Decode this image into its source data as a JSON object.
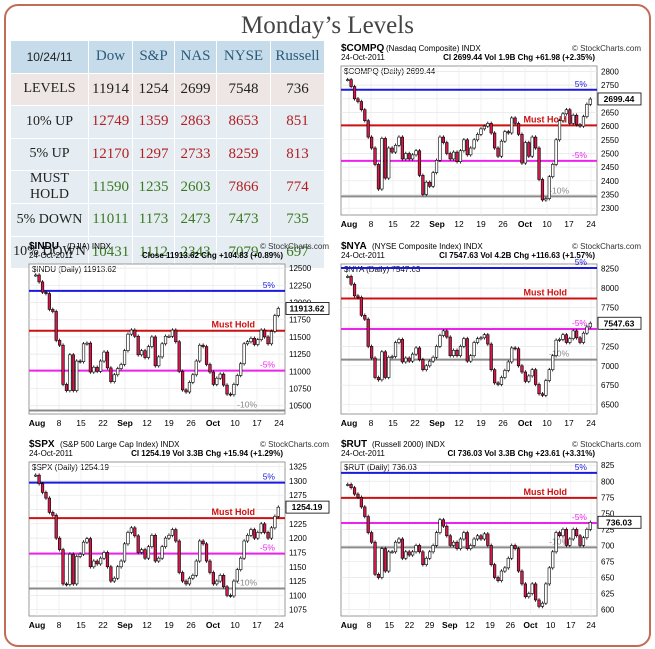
{
  "title": "Monday’s Levels",
  "table": {
    "date": "10/24/11",
    "columns": [
      "Dow",
      "S&P",
      "NAS",
      "NYSE",
      "Russell"
    ],
    "rows": [
      {
        "label": "LEVELS",
        "values": [
          "11914",
          "1254",
          "2699",
          "7548",
          "736"
        ],
        "kind": "lvl"
      },
      {
        "label": "10% UP",
        "values": [
          "12749",
          "1359",
          "2863",
          "8653",
          "851"
        ],
        "kind": "up"
      },
      {
        "label": "5% UP",
        "values": [
          "12170",
          "1297",
          "2733",
          "8259",
          "813"
        ],
        "kind": "up"
      },
      {
        "label": "MUST HOLD",
        "values": [
          "11590",
          "1235",
          "2603",
          "7866",
          "774"
        ],
        "kind": "hold"
      },
      {
        "label": "5% DOWN",
        "values": [
          "11011",
          "1173",
          "2473",
          "7473",
          "735"
        ],
        "kind": "dn"
      },
      {
        "label": "10% DOWN",
        "values": [
          "10431",
          "1112",
          "2343",
          "7079",
          "697"
        ],
        "kind": "dn"
      }
    ]
  },
  "colors": {
    "blue_line": "#1a1adf",
    "red_line": "#cc1111",
    "magenta_line": "#ee22ee",
    "gray_line": "#8a8a8a",
    "up_candle": "#ffffff",
    "down_candle": "#d21a4b",
    "plot_bg": "#ffffff"
  },
  "chart_data": [
    {
      "type": "candlestick",
      "symbol": "$COMPQ",
      "name": "(Nasdaq Composite)",
      "exchange": "INDX",
      "brand": "© StockCharts.com",
      "date": "24-Oct-2011",
      "stats": "Cl 2699.44  Vol 1.9B  Chg +61.98 (+2.35%)",
      "legend": "$COMPQ (Daily) 2699.44",
      "last_label": "2699.44",
      "last": 2699.44,
      "y_ticks": [
        2300,
        2350,
        2400,
        2450,
        2500,
        2550,
        2600,
        2650,
        2700,
        2750,
        2800
      ],
      "ylim": [
        2275,
        2820
      ],
      "x_ticks": [
        "Aug",
        "8",
        "15",
        "22",
        "Sep",
        "12",
        "19",
        "26",
        "Oct",
        "10",
        "17",
        "24"
      ],
      "levels": [
        {
          "label": "5%",
          "value": 2733,
          "color": "blue"
        },
        {
          "label": "Must Hold",
          "value": 2603,
          "color": "red"
        },
        {
          "label": "-5%",
          "value": 2473,
          "color": "magenta"
        },
        {
          "label": "-10%",
          "value": 2343,
          "color": "gray"
        }
      ],
      "closes": [
        2770,
        2745,
        2700,
        2690,
        2660,
        2620,
        2560,
        2520,
        2460,
        2370,
        2555,
        2410,
        2520,
        2505,
        2530,
        2560,
        2480,
        2500,
        2480,
        2495,
        2510,
        2420,
        2350,
        2395,
        2380,
        2430,
        2475,
        2560,
        2540,
        2500,
        2480,
        2505,
        2470,
        2510,
        2550,
        2495,
        2520,
        2550,
        2570,
        2590,
        2600,
        2610,
        2575,
        2520,
        2490,
        2545,
        2580,
        2575,
        2630,
        2610,
        2570,
        2465,
        2540,
        2490,
        2560,
        2520,
        2405,
        2330,
        2335,
        2415,
        2460,
        2550,
        2620,
        2645,
        2660,
        2610,
        2640,
        2605,
        2600,
        2635,
        2680,
        2699
      ]
    },
    {
      "type": "candlestick",
      "symbol": "$INDU",
      "name": "(DJIA)",
      "exchange": "INDX",
      "brand": "© StockCharts.com",
      "date": "24-Oct-2011",
      "stats": "Close 11913.62  Chg +104.83 (+0.89%)",
      "legend": "$INDU (Daily) 11913.62",
      "last_label": "11913.62",
      "last": 11913.62,
      "y_ticks": [
        10500,
        10750,
        11000,
        11250,
        11500,
        11750,
        12000,
        12250,
        12500
      ],
      "ylim": [
        10380,
        12560
      ],
      "x_ticks": [
        "Aug",
        "8",
        "15",
        "22",
        "Sep",
        "12",
        "19",
        "26",
        "Oct",
        "10",
        "17",
        "24"
      ],
      "levels": [
        {
          "label": "5%",
          "value": 12170,
          "color": "blue"
        },
        {
          "label": "Must Hold",
          "value": 11590,
          "color": "red"
        },
        {
          "label": "-5%",
          "value": 11011,
          "color": "magenta"
        },
        {
          "label": "-10%",
          "value": 10431,
          "color": "gray"
        }
      ],
      "closes": [
        12400,
        12300,
        12150,
        12130,
        11900,
        11870,
        11450,
        11380,
        10810,
        10720,
        11240,
        10720,
        11150,
        11140,
        11400,
        11410,
        10990,
        11060,
        11000,
        11150,
        11280,
        11050,
        10850,
        10950,
        11040,
        11100,
        11300,
        11540,
        11600,
        11510,
        11240,
        11300,
        11200,
        11360,
        11500,
        11080,
        11210,
        11400,
        11510,
        11510,
        11600,
        11430,
        11000,
        10730,
        10700,
        10840,
        10950,
        11150,
        11380,
        11360,
        11100,
        10990,
        10810,
        10900,
        10960,
        10800,
        10670,
        10660,
        10810,
        10940,
        11110,
        11400,
        11430,
        11480,
        11390,
        11460,
        11600,
        11500,
        11400,
        11580,
        11810,
        11914
      ]
    },
    {
      "type": "candlestick",
      "symbol": "$NYA",
      "name": "(NYSE Composite Index)",
      "exchange": "INDX",
      "brand": "© StockCharts.com",
      "date": "24-Oct-2011",
      "stats": "Cl 7547.63  Vol 4.2B  Chg +116.63 (+1.57%)",
      "legend": "$NYA (Daily) 7547.63",
      "last_label": "7547.63",
      "last": 7547.63,
      "y_ticks": [
        6500,
        6750,
        7000,
        7250,
        7500,
        7750,
        8000,
        8250
      ],
      "ylim": [
        6380,
        8310
      ],
      "x_ticks": [
        "Aug",
        "8",
        "15",
        "22",
        "Sep",
        "12",
        "19",
        "26",
        "Oct",
        "10",
        "17",
        "24"
      ],
      "levels": [
        {
          "label": "5%",
          "value": 8259,
          "color": "blue"
        },
        {
          "label": "Must Hold",
          "value": 7866,
          "color": "red"
        },
        {
          "label": "-5%",
          "value": 7473,
          "color": "magenta"
        },
        {
          "label": "-10%",
          "value": 7079,
          "color": "gray"
        }
      ],
      "closes": [
        8150,
        8050,
        7900,
        7880,
        7650,
        7600,
        7250,
        7100,
        6850,
        6820,
        7180,
        6850,
        7110,
        7120,
        7300,
        7340,
        7050,
        7100,
        7060,
        7150,
        7230,
        7080,
        6950,
        7000,
        7060,
        7110,
        7250,
        7390,
        7450,
        7370,
        7130,
        7200,
        7130,
        7250,
        7350,
        7060,
        7130,
        7300,
        7350,
        7360,
        7400,
        7280,
        6950,
        6780,
        6760,
        6850,
        6940,
        7050,
        7230,
        7220,
        7000,
        6920,
        6800,
        6870,
        6950,
        6760,
        6640,
        6620,
        6810,
        6950,
        7130,
        7330,
        7340,
        7400,
        7300,
        7350,
        7450,
        7360,
        7300,
        7420,
        7500,
        7548
      ]
    },
    {
      "type": "candlestick",
      "symbol": "$SPX",
      "name": "(S&P 500 Large Cap Index)",
      "exchange": "INDX",
      "brand": "© StockCharts.com",
      "date": "24-Oct-2011",
      "stats": "Cl 1254.19  Vol 3.3B  Chg +15.94 (+1.29%)",
      "legend": "$SPX (Daily) 1254.19",
      "last_label": "1254.19",
      "last": 1254.19,
      "y_ticks": [
        1075,
        1100,
        1125,
        1150,
        1175,
        1200,
        1225,
        1250,
        1275,
        1300,
        1325
      ],
      "ylim": [
        1064,
        1333
      ],
      "x_ticks": [
        "Aug",
        "8",
        "15",
        "22",
        "Sep",
        "12",
        "19",
        "26",
        "Oct",
        "10",
        "17",
        "24"
      ],
      "levels": [
        {
          "label": "5%",
          "value": 1297,
          "color": "blue"
        },
        {
          "label": "Must Hold",
          "value": 1235,
          "color": "red"
        },
        {
          "label": "-5%",
          "value": 1173,
          "color": "magenta"
        },
        {
          "label": "-10%",
          "value": 1112,
          "color": "gray"
        }
      ],
      "closes": [
        1310,
        1295,
        1280,
        1270,
        1245,
        1240,
        1200,
        1180,
        1120,
        1119,
        1172,
        1120,
        1168,
        1172,
        1193,
        1199,
        1150,
        1160,
        1155,
        1165,
        1175,
        1150,
        1125,
        1130,
        1150,
        1160,
        1190,
        1210,
        1218,
        1204,
        1175,
        1180,
        1165,
        1185,
        1205,
        1160,
        1165,
        1185,
        1200,
        1205,
        1215,
        1195,
        1140,
        1125,
        1120,
        1130,
        1135,
        1160,
        1195,
        1190,
        1160,
        1140,
        1120,
        1125,
        1135,
        1115,
        1100,
        1099,
        1125,
        1145,
        1165,
        1195,
        1205,
        1215,
        1200,
        1210,
        1225,
        1210,
        1200,
        1218,
        1238,
        1254
      ]
    },
    {
      "type": "candlestick",
      "symbol": "$RUT",
      "name": "(Russell 2000)",
      "exchange": "INDX",
      "brand": "© StockCharts.com",
      "date": "24-Oct-2011",
      "stats": "Cl 736.03  Vol 3.3B  Chg +23.61 (+3.31%)",
      "legend": "$RUT (Daily) 736.03",
      "last_label": "736.03",
      "last": 736.03,
      "y_ticks": [
        600,
        625,
        650,
        675,
        700,
        725,
        750,
        775,
        800,
        825
      ],
      "ylim": [
        590,
        830
      ],
      "x_ticks": [
        "Aug",
        "8",
        "15",
        "22",
        "29",
        "Sep",
        "12",
        "19",
        "26",
        "Oct",
        "10",
        "17",
        "24"
      ],
      "levels": [
        {
          "label": "5%",
          "value": 813,
          "color": "blue"
        },
        {
          "label": "Must Hold",
          "value": 774,
          "color": "red"
        },
        {
          "label": "-5%",
          "value": 735,
          "color": "magenta"
        },
        {
          "label": "-10%",
          "value": 697,
          "color": "gray"
        }
      ],
      "closes": [
        795,
        790,
        780,
        775,
        760,
        745,
        720,
        705,
        655,
        650,
        695,
        660,
        690,
        690,
        705,
        710,
        680,
        690,
        685,
        690,
        700,
        690,
        670,
        680,
        690,
        700,
        720,
        740,
        730,
        715,
        700,
        705,
        695,
        710,
        720,
        695,
        700,
        710,
        715,
        710,
        718,
        700,
        670,
        650,
        645,
        660,
        665,
        680,
        700,
        695,
        660,
        640,
        620,
        625,
        640,
        615,
        605,
        610,
        640,
        665,
        690,
        720,
        715,
        725,
        700,
        710,
        725,
        715,
        700,
        712,
        725,
        736
      ]
    }
  ]
}
